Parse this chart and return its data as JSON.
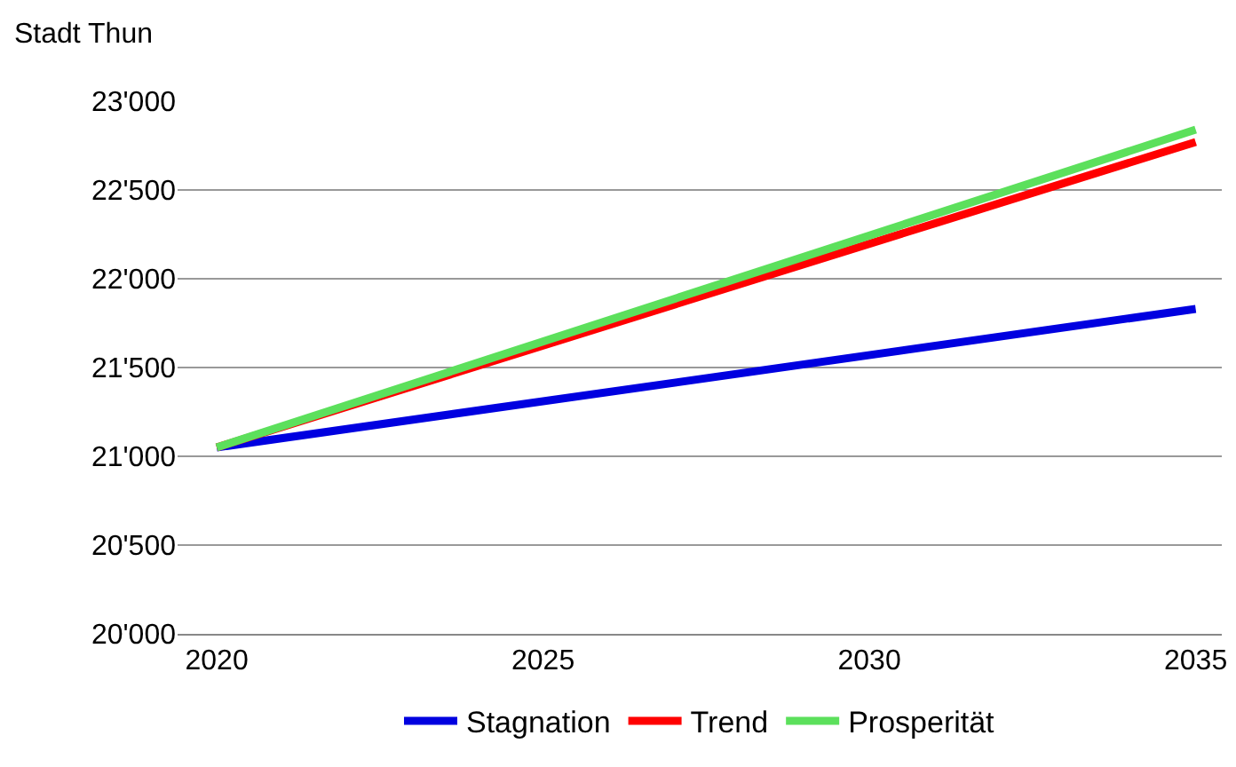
{
  "chart_data": {
    "type": "line",
    "ylabel": "Stadt Thun",
    "x": [
      2020,
      2035
    ],
    "series": [
      {
        "name": "Stagnation",
        "color": "#0000e0",
        "values": [
          21050,
          21830
        ]
      },
      {
        "name": "Trend",
        "color": "#ff0000",
        "values": [
          21050,
          22770
        ]
      },
      {
        "name": "Prosperität",
        "color": "#5ce05c",
        "values": [
          21050,
          22840
        ]
      }
    ],
    "xlim": [
      2019.4,
      2035.4
    ],
    "xticks": [
      2020,
      2025,
      2030,
      2035
    ],
    "ylim": [
      20000,
      23000
    ],
    "yticks": [
      {
        "value": 20000,
        "label": "20'000"
      },
      {
        "value": 20500,
        "label": "20'500"
      },
      {
        "value": 21000,
        "label": "21'000"
      },
      {
        "value": 21500,
        "label": "21'500"
      },
      {
        "value": 22000,
        "label": "22'000"
      },
      {
        "value": 22500,
        "label": "22'500"
      },
      {
        "value": 23000,
        "label": "23'000"
      }
    ],
    "grid": "y",
    "legend": "bottom",
    "marker": "none",
    "line_style": "solid"
  }
}
